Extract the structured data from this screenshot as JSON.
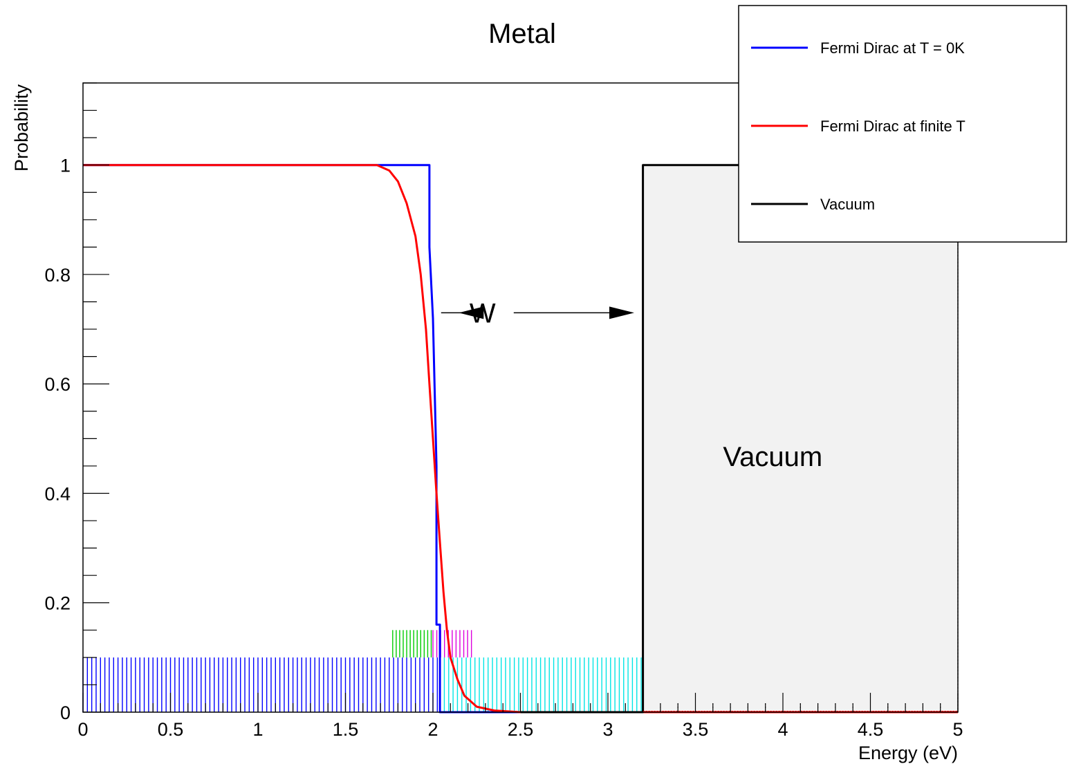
{
  "chart_data": {
    "type": "line",
    "title": "Metal",
    "xlabel": "Energy (eV)",
    "ylabel": "Probability",
    "xlim": [
      0,
      5
    ],
    "ylim": [
      0,
      1.15
    ],
    "x_ticks": [
      "0",
      "0.5",
      "1",
      "1.5",
      "2",
      "2.5",
      "3",
      "3.5",
      "4",
      "4.5",
      "5"
    ],
    "y_ticks": [
      "0",
      "0.2",
      "0.4",
      "0.6",
      "0.8",
      "1"
    ],
    "legend_position": "top-right",
    "series": [
      {
        "name": "Fermi Dirac at T = 0K",
        "color": "#0000ff",
        "points": [
          [
            0,
            1
          ],
          [
            1.98,
            1
          ],
          [
            1.98,
            0.85
          ],
          [
            2.0,
            0.72
          ],
          [
            2.02,
            0.45
          ],
          [
            2.02,
            0.16
          ],
          [
            2.04,
            0.16
          ],
          [
            2.04,
            0
          ],
          [
            5.0,
            0
          ]
        ]
      },
      {
        "name": "Fermi Dirac at finite T",
        "color": "#ff0000",
        "points": [
          [
            0,
            1
          ],
          [
            1.68,
            1.0
          ],
          [
            1.75,
            0.99
          ],
          [
            1.8,
            0.97
          ],
          [
            1.85,
            0.93
          ],
          [
            1.9,
            0.87
          ],
          [
            1.93,
            0.8
          ],
          [
            1.96,
            0.7
          ],
          [
            1.98,
            0.6
          ],
          [
            2.0,
            0.5
          ],
          [
            2.02,
            0.4
          ],
          [
            2.04,
            0.31
          ],
          [
            2.06,
            0.22
          ],
          [
            2.08,
            0.15
          ],
          [
            2.1,
            0.1
          ],
          [
            2.14,
            0.06
          ],
          [
            2.18,
            0.03
          ],
          [
            2.25,
            0.01
          ],
          [
            2.35,
            0.003
          ],
          [
            2.5,
            0.0
          ],
          [
            5.0,
            0.0
          ]
        ]
      },
      {
        "name": "Vacuum",
        "color": "#000000",
        "points": [
          [
            2.5,
            0
          ],
          [
            3.2,
            0
          ],
          [
            3.2,
            1
          ],
          [
            5.0,
            1
          ]
        ]
      }
    ],
    "regions": [
      {
        "x0": 3.2,
        "x1": 5.0,
        "y0": 0,
        "y1": 1,
        "fill": "#f2f2f2",
        "label": "Vacuum"
      }
    ],
    "rug_bands": [
      {
        "x0": 0.0,
        "x1": 2.04,
        "height": 0.1,
        "color": "#0000ff",
        "step": 0.025
      },
      {
        "x0": 2.04,
        "x1": 3.2,
        "height": 0.1,
        "color": "#00e5e5",
        "step": 0.025
      },
      {
        "x0": 1.77,
        "x1": 1.99,
        "y0": 0.1,
        "height": 0.05,
        "color": "#00cc00",
        "step": 0.02
      },
      {
        "x0": 2.0,
        "x1": 2.22,
        "y0": 0.1,
        "height": 0.05,
        "color": "#dd00dd",
        "step": 0.022
      }
    ],
    "annotations": [
      {
        "text": "W",
        "x": 2.6,
        "y": 0.73,
        "arrow_from": 2.1,
        "arrow_to": 3.17
      }
    ]
  }
}
